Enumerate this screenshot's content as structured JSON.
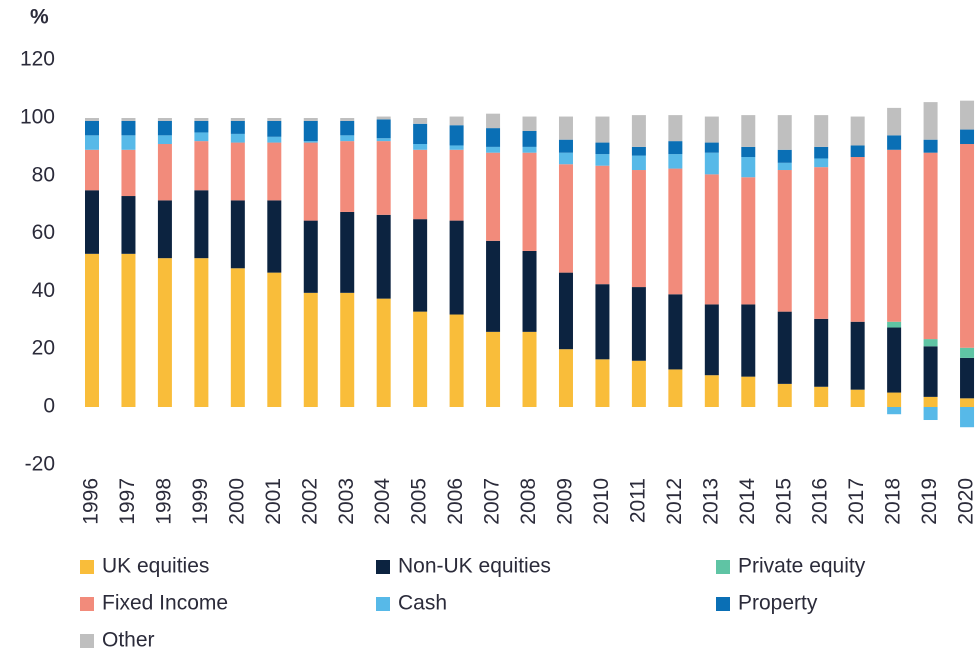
{
  "chart_data": {
    "type": "stacked_bar",
    "y_label": "%",
    "categories": [
      "1996",
      "1997",
      "1998",
      "1999",
      "2000",
      "2001",
      "2002",
      "2003",
      "2004",
      "2005",
      "2006",
      "2007",
      "2008",
      "2009",
      "2010",
      "2011",
      "2012",
      "2013",
      "2014",
      "2015",
      "2016",
      "2017",
      "2018",
      "2019",
      "2020"
    ],
    "series": [
      {
        "name": "UK equities",
        "color": "#f9bd3a",
        "values": [
          53,
          53,
          51.5,
          51.5,
          48,
          46.5,
          39.5,
          39.5,
          37.5,
          33,
          32,
          26,
          26,
          20,
          16.5,
          16,
          13,
          11,
          10.5,
          8,
          7,
          6,
          5,
          3.5,
          3
        ]
      },
      {
        "name": "Non-UK equities",
        "color": "#0c2340",
        "values": [
          22,
          20,
          20,
          23.5,
          23.5,
          25,
          25,
          28,
          29,
          32,
          32.5,
          31.5,
          28,
          26.5,
          26,
          25.5,
          26,
          24.5,
          25,
          25,
          23.5,
          23.5,
          22.5,
          17.5,
          14
        ]
      },
      {
        "name": "Private equity",
        "color": "#5fc4a4",
        "values": [
          0,
          0,
          0,
          0,
          0,
          0,
          0,
          0,
          0,
          0,
          0,
          0,
          0,
          0,
          0,
          0,
          0,
          0,
          0,
          0,
          0,
          0,
          2,
          2.5,
          3.5
        ]
      },
      {
        "name": "Fixed Income",
        "color": "#f28b7b",
        "values": [
          14,
          16,
          19.5,
          17,
          20,
          20,
          27,
          24.5,
          25.5,
          24,
          24.5,
          30.5,
          34,
          37.5,
          41,
          40.5,
          43.5,
          45,
          44,
          49,
          52.5,
          57,
          59.5,
          64.5,
          70.5
        ]
      },
      {
        "name": "Cash",
        "color": "#57b9e8",
        "values": [
          5,
          5,
          3,
          3,
          3,
          2,
          0.5,
          2,
          1,
          2,
          1.5,
          2,
          2,
          4,
          4,
          5,
          5,
          7.5,
          7,
          2.5,
          3,
          0,
          -2.5,
          -4.5,
          -7
        ]
      },
      {
        "name": "Property",
        "color": "#0a6fb5",
        "values": [
          5,
          5,
          5,
          4,
          4.5,
          5.5,
          7,
          5,
          6.5,
          7,
          7,
          6.5,
          5.5,
          4.5,
          4,
          3,
          4.5,
          3.5,
          3.5,
          4.5,
          4,
          4,
          5,
          4.5,
          5
        ]
      },
      {
        "name": "Other",
        "color": "#bfbfbf",
        "values": [
          1,
          1,
          1,
          1,
          1,
          1,
          1,
          1,
          1,
          2,
          3,
          5,
          5,
          8,
          9,
          11,
          9,
          9,
          11,
          12,
          11,
          10,
          9.5,
          13,
          10
        ]
      }
    ],
    "ylim": [
      -20,
      120
    ],
    "yticks": [
      -20,
      0,
      20,
      40,
      60,
      80,
      100,
      120
    ],
    "grid": false,
    "legend": "bottom"
  }
}
